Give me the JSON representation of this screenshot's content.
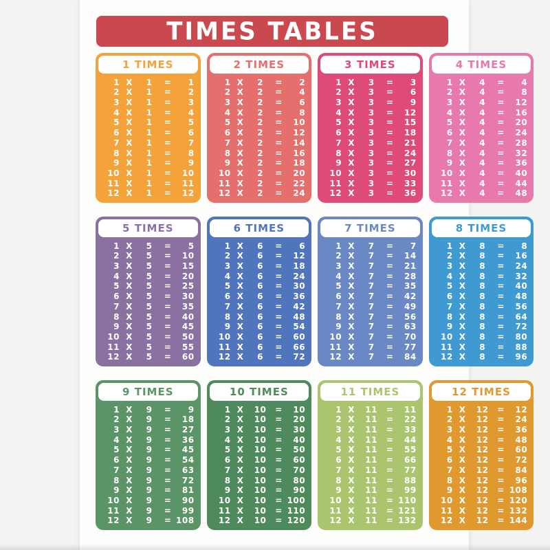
{
  "title": "TIMES TABLES",
  "banner_color": "#C9494F",
  "symbols": {
    "times": "X",
    "equals": "="
  },
  "factors": [
    1,
    2,
    3,
    4,
    5,
    6,
    7,
    8,
    9,
    10,
    11,
    12
  ],
  "tables": [
    {
      "label": "1 TIMES",
      "n": 1,
      "color": "#F3A33A",
      "products": [
        1,
        2,
        3,
        4,
        5,
        6,
        7,
        8,
        9,
        10,
        11,
        12
      ]
    },
    {
      "label": "2 TIMES",
      "n": 2,
      "color": "#E56F6D",
      "products": [
        2,
        4,
        6,
        8,
        10,
        12,
        14,
        16,
        18,
        20,
        22,
        24
      ]
    },
    {
      "label": "3 TIMES",
      "n": 3,
      "color": "#DE4B78",
      "products": [
        3,
        6,
        9,
        12,
        15,
        18,
        21,
        24,
        27,
        30,
        33,
        36
      ]
    },
    {
      "label": "4 TIMES",
      "n": 4,
      "color": "#E879AD",
      "products": [
        4,
        8,
        12,
        16,
        20,
        24,
        28,
        32,
        36,
        40,
        44,
        48
      ]
    },
    {
      "label": "5 TIMES",
      "n": 5,
      "color": "#8B70A2",
      "products": [
        5,
        10,
        15,
        20,
        25,
        30,
        35,
        40,
        45,
        50,
        55,
        60
      ]
    },
    {
      "label": "6 TIMES",
      "n": 6,
      "color": "#5175BD",
      "products": [
        6,
        12,
        18,
        24,
        30,
        36,
        42,
        48,
        54,
        60,
        66,
        72
      ]
    },
    {
      "label": "7 TIMES",
      "n": 7,
      "color": "#6A89C4",
      "products": [
        7,
        14,
        21,
        28,
        35,
        42,
        49,
        56,
        63,
        70,
        77,
        84
      ]
    },
    {
      "label": "8 TIMES",
      "n": 8,
      "color": "#3F9AD2",
      "products": [
        8,
        16,
        24,
        32,
        40,
        48,
        56,
        64,
        72,
        80,
        88,
        96
      ]
    },
    {
      "label": "9 TIMES",
      "n": 9,
      "color": "#5B9467",
      "products": [
        9,
        18,
        27,
        36,
        45,
        54,
        63,
        72,
        81,
        90,
        99,
        108
      ]
    },
    {
      "label": "10 TIMES",
      "n": 10,
      "color": "#4F8A5C",
      "products": [
        10,
        20,
        30,
        40,
        50,
        60,
        70,
        80,
        90,
        100,
        110,
        120
      ]
    },
    {
      "label": "11 TIMES",
      "n": 11,
      "color": "#ABC56F",
      "products": [
        11,
        22,
        33,
        44,
        55,
        66,
        77,
        88,
        99,
        110,
        121,
        132
      ]
    },
    {
      "label": "12 TIMES",
      "n": 12,
      "color": "#E0992F",
      "products": [
        12,
        24,
        36,
        48,
        60,
        72,
        84,
        96,
        108,
        120,
        132,
        144
      ]
    }
  ]
}
